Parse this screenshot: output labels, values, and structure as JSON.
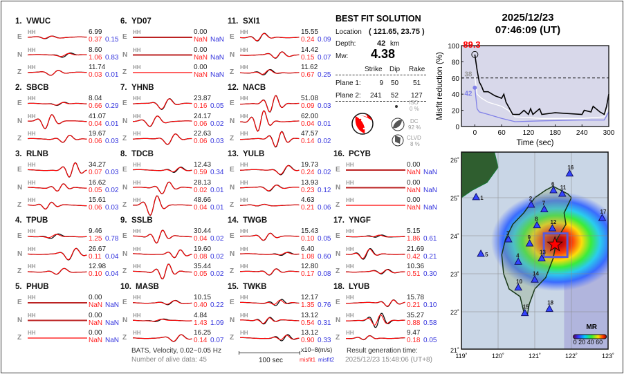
{
  "stations": [
    {
      "num": "1.",
      "name": "VWUC",
      "comps": [
        {
          "c": "E",
          "hh": "HH",
          "amp": "6.99",
          "m1": "0.37",
          "m2": "0.15"
        },
        {
          "c": "N",
          "hh": "HH",
          "amp": "8.60",
          "m1": "1.06",
          "m2": "0.83"
        },
        {
          "c": "Z",
          "hh": "HH",
          "amp": "11.74",
          "m1": "0.03",
          "m2": "0.01"
        }
      ]
    },
    {
      "num": "2.",
      "name": "SBCB",
      "comps": [
        {
          "c": "E",
          "hh": "HH",
          "amp": "8.04",
          "m1": "0.66",
          "m2": "0.29"
        },
        {
          "c": "N",
          "hh": "HH",
          "amp": "41.07",
          "m1": "0.04",
          "m2": "0.01"
        },
        {
          "c": "Z",
          "hh": "HH",
          "amp": "19.67",
          "m1": "0.06",
          "m2": "0.03"
        }
      ]
    },
    {
      "num": "3.",
      "name": "RLNB",
      "comps": [
        {
          "c": "E",
          "hh": "HH",
          "amp": "34.27",
          "m1": "0.07",
          "m2": "0.03"
        },
        {
          "c": "N",
          "hh": "HH",
          "amp": "16.62",
          "m1": "0.05",
          "m2": "0.02"
        },
        {
          "c": "Z",
          "hh": "HH",
          "amp": "15.61",
          "m1": "0.06",
          "m2": "0.03"
        }
      ]
    },
    {
      "num": "4.",
      "name": "TPUB",
      "comps": [
        {
          "c": "E",
          "hh": "HH",
          "amp": "9.46",
          "m1": "1.25",
          "m2": "0.78"
        },
        {
          "c": "N",
          "hh": "HH",
          "amp": "26.67",
          "m1": "0.11",
          "m2": "0.04"
        },
        {
          "c": "Z",
          "hh": "HH",
          "amp": "12.98",
          "m1": "0.10",
          "m2": "0.04"
        }
      ]
    },
    {
      "num": "5.",
      "name": "PHUB",
      "comps": [
        {
          "c": "E",
          "hh": "HH",
          "amp": "0.00",
          "m1": "NaN",
          "m2": "NaN"
        },
        {
          "c": "N",
          "hh": "HH",
          "amp": "0.00",
          "m1": "NaN",
          "m2": "NaN"
        },
        {
          "c": "Z",
          "hh": "HH",
          "amp": "0.00",
          "m1": "NaN",
          "m2": "NaN"
        }
      ]
    },
    {
      "num": "6.",
      "name": "YD07",
      "comps": [
        {
          "c": "E",
          "hh": "HH",
          "amp": "0.00",
          "m1": "NaN",
          "m2": "NaN"
        },
        {
          "c": "N",
          "hh": "HH",
          "amp": "0.00",
          "m1": "NaN",
          "m2": "NaN"
        },
        {
          "c": "Z",
          "hh": "HH",
          "amp": "0.00",
          "m1": "NaN",
          "m2": "NaN"
        }
      ]
    },
    {
      "num": "7.",
      "name": "YHNB",
      "comps": [
        {
          "c": "E",
          "hh": "HH",
          "amp": "23.87",
          "m1": "0.16",
          "m2": "0.05"
        },
        {
          "c": "N",
          "hh": "HH",
          "amp": "24.17",
          "m1": "0.06",
          "m2": "0.02"
        },
        {
          "c": "Z",
          "hh": "HH",
          "amp": "22.63",
          "m1": "0.06",
          "m2": "0.03"
        }
      ]
    },
    {
      "num": "8.",
      "name": "TDCB",
      "comps": [
        {
          "c": "E",
          "hh": "HH",
          "amp": "12.43",
          "m1": "0.59",
          "m2": "0.34"
        },
        {
          "c": "N",
          "hh": "HH",
          "amp": "28.13",
          "m1": "0.02",
          "m2": "0.01"
        },
        {
          "c": "Z",
          "hh": "HH",
          "amp": "48.66",
          "m1": "0.04",
          "m2": "0.01"
        }
      ]
    },
    {
      "num": "9.",
      "name": "SSLB",
      "comps": [
        {
          "c": "E",
          "hh": "HH",
          "amp": "30.44",
          "m1": "0.04",
          "m2": "0.02"
        },
        {
          "c": "N",
          "hh": "HH",
          "amp": "19.60",
          "m1": "0.08",
          "m2": "0.02"
        },
        {
          "c": "Z",
          "hh": "HH",
          "amp": "35.44",
          "m1": "0.05",
          "m2": "0.02"
        }
      ]
    },
    {
      "num": "10.",
      "name": "MASB",
      "comps": [
        {
          "c": "E",
          "hh": "HH",
          "amp": "10.15",
          "m1": "0.40",
          "m2": "0.22"
        },
        {
          "c": "N",
          "hh": "HH",
          "amp": "4.84",
          "m1": "1.43",
          "m2": "1.09"
        },
        {
          "c": "Z",
          "hh": "HH",
          "amp": "16.25",
          "m1": "0.14",
          "m2": "0.07"
        }
      ]
    },
    {
      "num": "11.",
      "name": "SXI1",
      "comps": [
        {
          "c": "E",
          "hh": "HH",
          "amp": "15.55",
          "m1": "0.24",
          "m2": "0.09"
        },
        {
          "c": "N",
          "hh": "HH",
          "amp": "14.42",
          "m1": "0.15",
          "m2": "0.07"
        },
        {
          "c": "Z",
          "hh": "HH",
          "amp": "11.62",
          "m1": "0.67",
          "m2": "0.25"
        }
      ]
    },
    {
      "num": "12.",
      "name": "NACB",
      "comps": [
        {
          "c": "E",
          "hh": "HH",
          "amp": "51.08",
          "m1": "0.09",
          "m2": "0.03"
        },
        {
          "c": "N",
          "hh": "HH",
          "amp": "62.00",
          "m1": "0.04",
          "m2": "0.01"
        },
        {
          "c": "Z",
          "hh": "HH",
          "amp": "47.57",
          "m1": "0.14",
          "m2": "0.02"
        }
      ]
    },
    {
      "num": "13.",
      "name": "YULB",
      "comps": [
        {
          "c": "E",
          "hh": "HH",
          "amp": "19.73",
          "m1": "0.24",
          "m2": "0.02"
        },
        {
          "c": "N",
          "hh": "HH",
          "amp": "13.93",
          "m1": "0.23",
          "m2": "0.12"
        },
        {
          "c": "Z",
          "hh": "HH",
          "amp": "4.63",
          "m1": "0.21",
          "m2": "0.06"
        }
      ]
    },
    {
      "num": "14.",
      "name": "TWGB",
      "comps": [
        {
          "c": "E",
          "hh": "HH",
          "amp": "15.43",
          "m1": "0.10",
          "m2": "0.05"
        },
        {
          "c": "N",
          "hh": "HH",
          "amp": "6.40",
          "m1": "1.08",
          "m2": "0.60"
        },
        {
          "c": "Z",
          "hh": "HH",
          "amp": "12.80",
          "m1": "0.17",
          "m2": "0.08"
        }
      ]
    },
    {
      "num": "15.",
      "name": "TWKB",
      "comps": [
        {
          "c": "E",
          "hh": "HH",
          "amp": "12.17",
          "m1": "1.35",
          "m2": "0.76"
        },
        {
          "c": "N",
          "hh": "HH",
          "amp": "13.12",
          "m1": "0.54",
          "m2": "0.31"
        },
        {
          "c": "Z",
          "hh": "HH",
          "amp": "13.12",
          "m1": "0.90",
          "m2": "0.33"
        }
      ]
    },
    {
      "num": "16.",
      "name": "PCYB",
      "comps": [
        {
          "c": "E",
          "hh": "HH",
          "amp": "0.00",
          "m1": "NaN",
          "m2": "NaN"
        },
        {
          "c": "N",
          "hh": "HH",
          "amp": "0.00",
          "m1": "NaN",
          "m2": "NaN"
        },
        {
          "c": "Z",
          "hh": "HH",
          "amp": "0.00",
          "m1": "NaN",
          "m2": "NaN"
        }
      ]
    },
    {
      "num": "17.",
      "name": "YNGF",
      "comps": [
        {
          "c": "E",
          "hh": "HH",
          "amp": "5.15",
          "m1": "1.86",
          "m2": "0.61"
        },
        {
          "c": "N",
          "hh": "HH",
          "amp": "21.69",
          "m1": "0.42",
          "m2": "0.21"
        },
        {
          "c": "Z",
          "hh": "HH",
          "amp": "10.36",
          "m1": "0.51",
          "m2": "0.30"
        }
      ]
    },
    {
      "num": "18.",
      "name": "LYUB",
      "comps": [
        {
          "c": "E",
          "hh": "HH",
          "amp": "15.78",
          "m1": "0.21",
          "m2": "0.10"
        },
        {
          "c": "N",
          "hh": "HH",
          "amp": "35.27",
          "m1": "0.88",
          "m2": "0.58"
        },
        {
          "c": "Z",
          "hh": "HH",
          "amp": "9.47",
          "m1": "0.18",
          "m2": "0.05"
        }
      ]
    }
  ],
  "footer": {
    "network_info": "BATS, Velocity, 0.02~0.05 Hz",
    "alive_data": "Number of alive data: 45",
    "scale_label": "100 sec",
    "unit_label": "x10−8(m/s)",
    "misfit1_label": "misfit1",
    "misfit2_label": "misfit2",
    "result_time_label": "Result generation time:",
    "result_time": "2025/12/23 15:48:06 (UT+8)"
  },
  "solution": {
    "title": "BEST FIT SOLUTION",
    "location_label": "Location",
    "location_value": "( 121.65,  23.75 )",
    "depth_label": "Depth:",
    "depth_value": "42",
    "depth_unit": "km",
    "mw_label": "Mw:",
    "mw_value": "4.38",
    "headers": [
      "Strike",
      "Dip",
      "Rake"
    ],
    "planes": [
      {
        "label": "Plane 1:",
        "strike": "9",
        "dip": "50",
        "rake": "51"
      },
      {
        "label": "Plane 2:",
        "strike": "241",
        "dip": "52",
        "rake": "127"
      }
    ],
    "iso_label": "ISO",
    "iso_value": "0  %",
    "dc_label": "DC",
    "dc_value": "92 %",
    "clvd_label": "CLVD",
    "clvd_value": "8  %",
    "colors": {
      "beachball": "#ff0000",
      "components": "#555555"
    }
  },
  "event": {
    "date": "2025/12/23",
    "time": "07:46:09  (UT)"
  },
  "chart_data": {
    "type": "line",
    "xlabel": "Time (sec)",
    "ylabel": "Misfit reduction (%)",
    "xlim": [
      -30,
      300
    ],
    "ylim": [
      0,
      100
    ],
    "xticks": [
      "0",
      "60",
      "120",
      "180",
      "240",
      "300"
    ],
    "yticks": [
      "0",
      "20",
      "40",
      "60",
      "80",
      "100"
    ],
    "threshold": 60,
    "background": "#d8d8ea",
    "annotations": {
      "peak": "89.3",
      "white_start": "38",
      "blue_start": "42"
    },
    "series": [
      {
        "color": "#000000",
        "x": [
          0,
          5,
          10,
          15,
          20,
          30,
          45,
          60,
          65,
          70,
          75,
          85,
          100,
          110,
          120,
          125,
          130,
          145,
          150,
          180,
          210,
          240,
          245,
          260,
          265,
          280,
          290,
          295,
          300
        ],
        "y": [
          89,
          70,
          55,
          50,
          43,
          43,
          38,
          35,
          40,
          30,
          25,
          15,
          15,
          20,
          15,
          22,
          15,
          22,
          15,
          17,
          16,
          15,
          20,
          18,
          25,
          18,
          15,
          25,
          40
        ]
      },
      {
        "color": "#ffffff",
        "x": [
          0,
          5,
          15,
          30,
          60,
          75,
          90,
          150,
          240,
          290,
          300
        ],
        "y": [
          62,
          40,
          35,
          30,
          25,
          20,
          12,
          10,
          10,
          12,
          25
        ]
      },
      {
        "color": "#8080e8",
        "x": [
          0,
          5,
          10,
          30,
          60,
          75,
          90,
          150,
          240,
          290,
          300
        ],
        "y": [
          48,
          22,
          18,
          15,
          10,
          8,
          6,
          7,
          8,
          8,
          18
        ]
      }
    ]
  },
  "map": {
    "lon_ticks": [
      "119˚",
      "120˚",
      "121˚",
      "122˚",
      "123˚"
    ],
    "lat_ticks": [
      "21˚",
      "22˚",
      "23˚",
      "24˚",
      "25˚",
      "26˚"
    ],
    "colorbar_title": "MR",
    "colorbar_ticks": "0 20 40 60",
    "station_color": "#3344ff",
    "epicenter_color": "#ff0000",
    "stations": [
      {
        "id": "1",
        "lon": 119.4,
        "lat": 25.02
      },
      {
        "id": "2",
        "lon": 120.9,
        "lat": 24.82
      },
      {
        "id": "3",
        "lon": 120.28,
        "lat": 23.91
      },
      {
        "id": "4",
        "lon": 120.55,
        "lat": 23.32
      },
      {
        "id": "5",
        "lon": 119.53,
        "lat": 23.53
      },
      {
        "id": "6",
        "lon": 121.51,
        "lat": 25.2
      },
      {
        "id": "7",
        "lon": 121.26,
        "lat": 24.7
      },
      {
        "id": "8",
        "lon": 121.06,
        "lat": 24.28
      },
      {
        "id": "9",
        "lon": 120.86,
        "lat": 23.8
      },
      {
        "id": "10",
        "lon": 120.55,
        "lat": 22.64
      },
      {
        "id": "11",
        "lon": 121.75,
        "lat": 25.11
      },
      {
        "id": "12",
        "lon": 121.48,
        "lat": 24.2
      },
      {
        "id": "13",
        "lon": 121.19,
        "lat": 23.41
      },
      {
        "id": "14",
        "lon": 121.0,
        "lat": 22.85
      },
      {
        "id": "15",
        "lon": 120.73,
        "lat": 21.97
      },
      {
        "id": "16",
        "lon": 121.95,
        "lat": 25.64
      },
      {
        "id": "17",
        "lon": 122.84,
        "lat": 24.47
      },
      {
        "id": "18",
        "lon": 121.4,
        "lat": 22.08
      }
    ],
    "epicenter": {
      "lon": 121.55,
      "lat": 23.77
    }
  }
}
